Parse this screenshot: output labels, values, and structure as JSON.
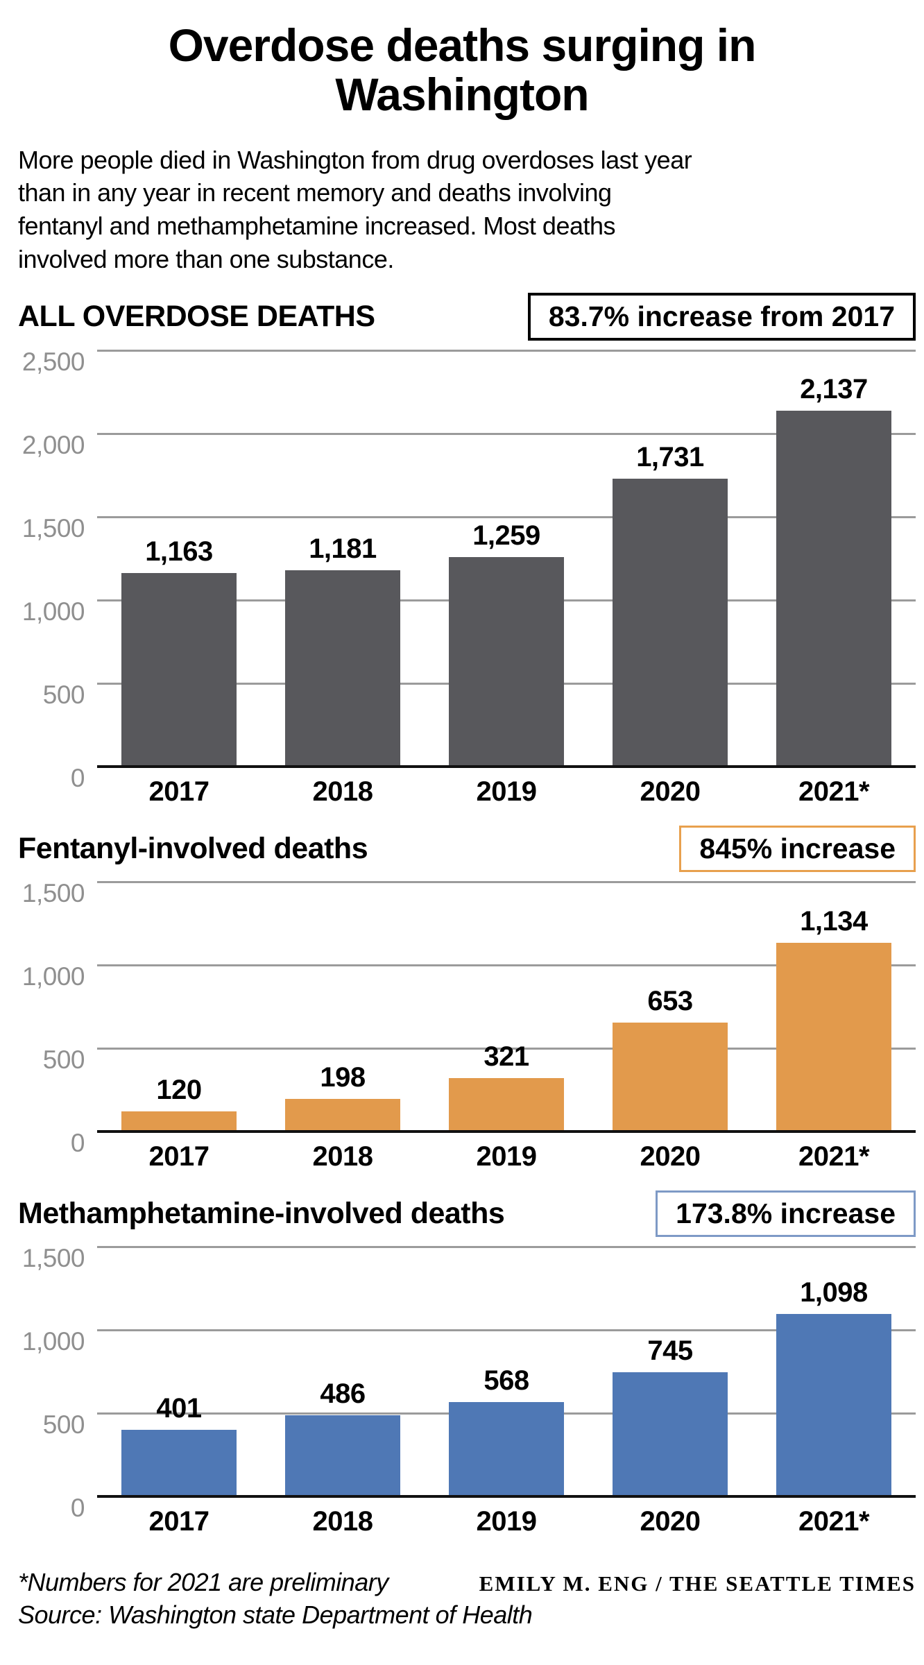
{
  "header": {
    "title": "Overdose deaths surging in Washington",
    "title_lines": [
      "Overdose deaths surging in",
      "Washington"
    ],
    "subtitle_lines": [
      "More people died in Washington from drug overdoses last year",
      "than in any year in recent memory and deaths involving",
      "fentanyl and methamphetamine increased. Most deaths",
      "involved more than one substance."
    ]
  },
  "colors": {
    "gridline": "#9b9b9b",
    "tick_label": "#8f8f8f",
    "baseline": "#111111",
    "text": "#000000",
    "background": "#ffffff"
  },
  "chart_data": [
    {
      "type": "bar",
      "title": "ALL OVERDOSE DEATHS",
      "callout": "83.7% increase from 2017",
      "callout_border": "#000000",
      "callout_border_width": 4,
      "categories": [
        "2017",
        "2018",
        "2019",
        "2020",
        "2021*"
      ],
      "values": [
        1163,
        1181,
        1259,
        1731,
        2137
      ],
      "value_labels": [
        "1,163",
        "1,181",
        "1,259",
        "1,731",
        "2,137"
      ],
      "bar_color": "#58585c",
      "ylim": [
        0,
        2500
      ],
      "yticks": [
        0,
        500,
        1000,
        1500,
        2000,
        2500
      ],
      "ytick_labels": [
        "0",
        "500",
        "1,000",
        "1,500",
        "2,000",
        "2,500"
      ],
      "grid": true,
      "legend": "none"
    },
    {
      "type": "bar",
      "title": "Fentanyl-involved deaths",
      "callout": "845% increase",
      "callout_border": "#e8a04e",
      "callout_border_width": 3,
      "categories": [
        "2017",
        "2018",
        "2019",
        "2020",
        "2021*"
      ],
      "values": [
        120,
        198,
        321,
        653,
        1134
      ],
      "value_labels": [
        "120",
        "198",
        "321",
        "653",
        "1,134"
      ],
      "bar_color": "#e29a4c",
      "ylim": [
        0,
        1500
      ],
      "yticks": [
        0,
        500,
        1000,
        1500
      ],
      "ytick_labels": [
        "0",
        "500",
        "1,000",
        "1,500"
      ],
      "grid": true,
      "legend": "none"
    },
    {
      "type": "bar",
      "title": "Methamphetamine-involved deaths",
      "callout": "173.8% increase",
      "callout_border": "#7e9ac6",
      "callout_border_width": 3,
      "categories": [
        "2017",
        "2018",
        "2019",
        "2020",
        "2021*"
      ],
      "values": [
        401,
        486,
        568,
        745,
        1098
      ],
      "value_labels": [
        "401",
        "486",
        "568",
        "745",
        "1,098"
      ],
      "bar_color": "#4f78b5",
      "ylim": [
        0,
        1500
      ],
      "yticks": [
        0,
        500,
        1000,
        1500
      ],
      "ytick_labels": [
        "0",
        "500",
        "1,000",
        "1,500"
      ],
      "grid": true,
      "legend": "none"
    }
  ],
  "footer": {
    "note": "*Numbers for 2021 are preliminary",
    "credit": "EMILY M. ENG / THE SEATTLE TIMES",
    "source": "Source: Washington state Department of Health"
  }
}
